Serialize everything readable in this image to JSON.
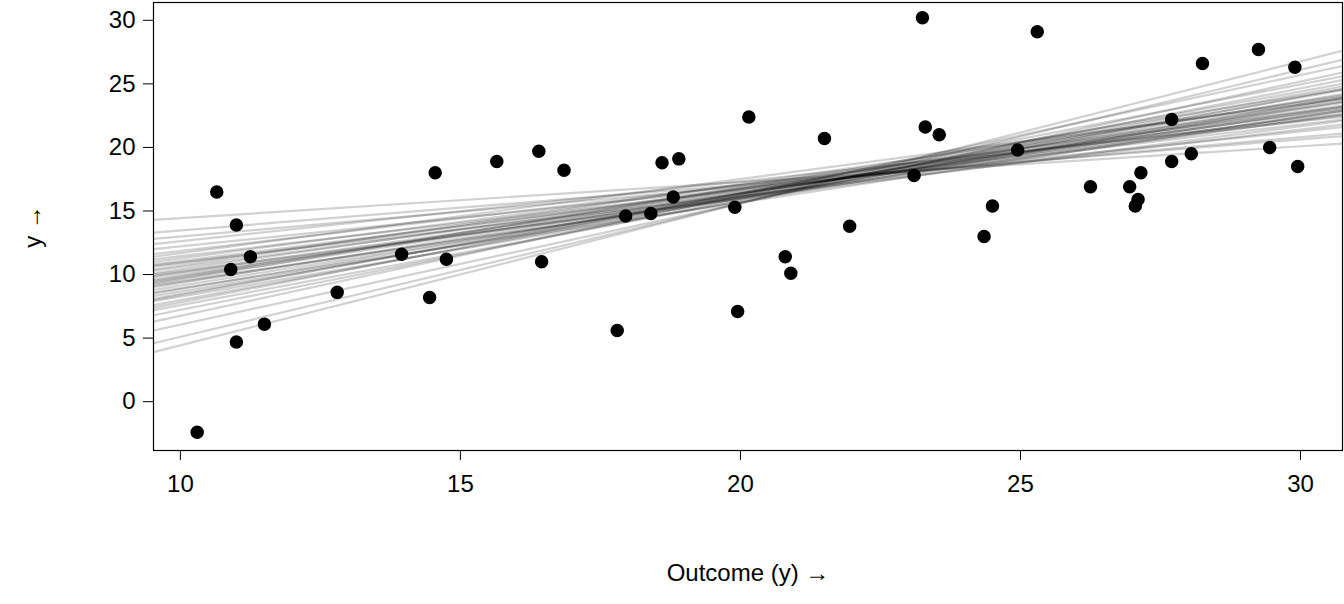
{
  "chart_data": {
    "type": "scatter",
    "x_label": "Outcome (y)",
    "y_label": "y",
    "xlim": [
      9.52,
      30.75
    ],
    "ylim": [
      -3.84,
      31.4
    ],
    "xticks": [
      10,
      15,
      20,
      25,
      30
    ],
    "yticks": [
      0,
      5,
      10,
      15,
      20,
      25,
      30
    ],
    "grid": false,
    "marker": "circle",
    "color": "#000000",
    "x": [
      10.3,
      10.65,
      10.9,
      11.0,
      11.0,
      11.25,
      11.5,
      12.8,
      13.95,
      14.45,
      14.55,
      14.75,
      15.65,
      16.4,
      16.45,
      16.85,
      17.8,
      17.95,
      18.4,
      18.6,
      18.8,
      18.9,
      19.9,
      19.95,
      20.15,
      20.8,
      20.9,
      21.5,
      21.95,
      23.1,
      23.25,
      23.3,
      23.55,
      24.35,
      24.5,
      24.95,
      25.3,
      26.25,
      26.95,
      27.05,
      27.1,
      27.15,
      27.7,
      27.7,
      28.05,
      28.25,
      29.25,
      29.45,
      29.9,
      29.95
    ],
    "values": [
      -2.4,
      16.5,
      10.4,
      13.9,
      4.7,
      11.4,
      6.1,
      8.6,
      11.6,
      8.2,
      18.0,
      11.2,
      18.9,
      19.7,
      11.0,
      18.2,
      5.6,
      14.6,
      14.8,
      18.8,
      16.1,
      19.1,
      15.3,
      7.1,
      22.4,
      11.4,
      10.1,
      20.7,
      13.8,
      17.8,
      30.2,
      21.6,
      21.0,
      13.0,
      15.4,
      19.8,
      29.1,
      16.9,
      16.9,
      15.4,
      15.9,
      18.0,
      18.9,
      22.2,
      19.5,
      26.6,
      27.7,
      20.0,
      26.3,
      18.5
    ],
    "fitted_lines": {
      "x": [
        9.52,
        30.75
      ],
      "y": [
        [
          9.4,
          23.5
        ],
        [
          8.5,
          24.2
        ],
        [
          10.3,
          22.8
        ],
        [
          7.6,
          24.8
        ],
        [
          11.2,
          22.2
        ],
        [
          9.0,
          23.9
        ],
        [
          9.9,
          23.1
        ],
        [
          8.1,
          24.5
        ],
        [
          10.8,
          22.5
        ],
        [
          6.8,
          25.3
        ],
        [
          12.0,
          21.6
        ],
        [
          9.6,
          23.3
        ],
        [
          8.8,
          23.6
        ],
        [
          10.1,
          23.6
        ],
        [
          9.2,
          22.9
        ],
        [
          7.2,
          24.6
        ],
        [
          11.6,
          22.6
        ],
        [
          8.3,
          23.9
        ],
        [
          10.6,
          23.0
        ],
        [
          9.5,
          24.1
        ],
        [
          5.6,
          25.9
        ],
        [
          12.8,
          21.1
        ],
        [
          9.8,
          22.6
        ],
        [
          8.0,
          25.0
        ],
        [
          10.4,
          24.0
        ],
        [
          7.9,
          23.8
        ],
        [
          11.0,
          23.2
        ],
        [
          6.3,
          26.4
        ],
        [
          13.3,
          20.9
        ],
        [
          9.3,
          24.6
        ],
        [
          10.0,
          22.1
        ],
        [
          8.6,
          22.9
        ],
        [
          11.4,
          23.8
        ],
        [
          4.6,
          26.9
        ],
        [
          14.3,
          20.3
        ],
        [
          9.1,
          23.2
        ],
        [
          10.7,
          21.8
        ],
        [
          7.4,
          25.6
        ],
        [
          12.4,
          22.4
        ],
        [
          3.9,
          27.6
        ]
      ]
    }
  }
}
